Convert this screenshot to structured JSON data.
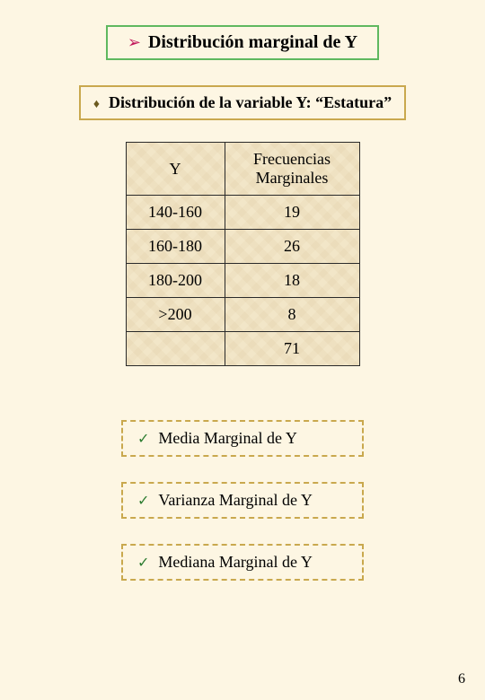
{
  "title": {
    "arrow_color": "#c2185b",
    "text": "Distribución marginal de Y"
  },
  "subtitle": {
    "diamond_color": "#6b5a1e",
    "text": "Distribución de la variable Y: “Estatura”"
  },
  "table": {
    "header_y": "Y",
    "header_freq": "Frecuencias Marginales",
    "rows": [
      {
        "y": "140-160",
        "freq": "19"
      },
      {
        "y": "160-180",
        "freq": "26"
      },
      {
        "y": "180-200",
        "freq": "18"
      },
      {
        "y": ">200",
        "freq": "8"
      }
    ],
    "total": "71",
    "bg_color": "#f2e6c8",
    "border_color": "#2a2a2a"
  },
  "stats": [
    {
      "label": "Media Marginal de Y"
    },
    {
      "label": "Varianza Marginal de Y"
    },
    {
      "label": "Mediana Marginal de Y"
    }
  ],
  "page_number": "6",
  "colors": {
    "page_bg": "#fdf6e3",
    "title_border": "#5fb85f",
    "sub_border": "#c9a84e",
    "check_color": "#2e7d32"
  }
}
